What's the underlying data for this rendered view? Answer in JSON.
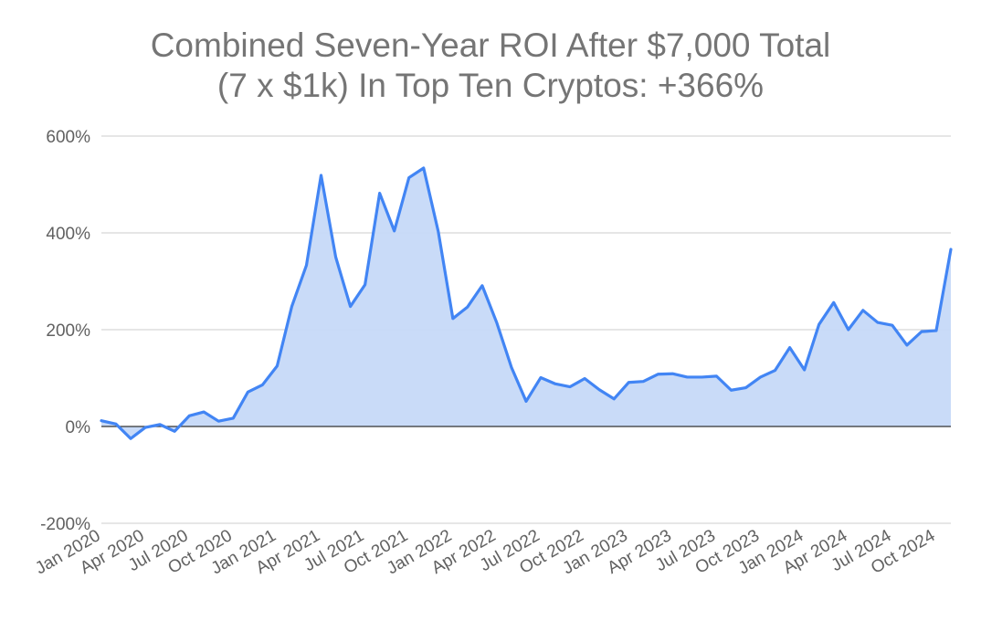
{
  "chart_data": {
    "type": "area",
    "title": "Combined Seven-Year ROI After $7,000 Total",
    "subtitle": "(7 x $1k) In Top Ten Cryptos: +366%",
    "xlabel": "",
    "ylabel": "",
    "ylim": [
      -200,
      600
    ],
    "yticks": [
      -200,
      0,
      200,
      400,
      600
    ],
    "ytick_labels": [
      "-200%",
      "0%",
      "200%",
      "400%",
      "600%"
    ],
    "xtick_labels": [
      "Jan 2020",
      "Apr 2020",
      "Jul 2020",
      "Oct 2020",
      "Jan 2021",
      "Apr 2021",
      "Jul 2021",
      "Oct 2021",
      "Jan 2022",
      "Apr 2022",
      "Jul 2022",
      "Oct 2022",
      "Jan 2023",
      "Apr 2023",
      "Jul 2023",
      "Oct 2023",
      "Jan 2024",
      "Apr 2024",
      "Jul 2024",
      "Oct 2024"
    ],
    "grid": true,
    "colors": {
      "line": "#4285f4",
      "fill": "#c6d9f8",
      "grid": "#cccccc",
      "zero_line": "#333333"
    },
    "series": [
      {
        "x": [
          "Jan 2020",
          "Feb 2020",
          "Mar 2020",
          "Apr 2020",
          "May 2020",
          "Jun 2020",
          "Jul 2020",
          "Aug 2020",
          "Sep 2020",
          "Oct 2020",
          "Nov 2020",
          "Dec 2020",
          "Jan 2021",
          "Feb 2021",
          "Mar 2021",
          "Apr 2021",
          "May 2021",
          "Jun 2021",
          "Jul 2021",
          "Aug 2021",
          "Sep 2021",
          "Oct 2021",
          "Nov 2021",
          "Dec 2021",
          "Jan 2022",
          "Feb 2022",
          "Mar 2022",
          "Apr 2022",
          "May 2022",
          "Jun 2022",
          "Jul 2022",
          "Aug 2022",
          "Sep 2022",
          "Oct 2022",
          "Nov 2022",
          "Dec 2022",
          "Jan 2023",
          "Feb 2023",
          "Mar 2023",
          "Apr 2023",
          "May 2023",
          "Jun 2023",
          "Jul 2023",
          "Aug 2023",
          "Sep 2023",
          "Oct 2023",
          "Nov 2023",
          "Dec 2023",
          "Jan 2024",
          "Feb 2024",
          "Mar 2024",
          "Apr 2024",
          "May 2024",
          "Jun 2024",
          "Jul 2024",
          "Aug 2024",
          "Sep 2024",
          "Oct 2024",
          "Nov 2024"
        ],
        "values": [
          12,
          5,
          -25,
          -2,
          4,
          -10,
          22,
          30,
          11,
          17,
          71,
          86,
          125,
          248,
          333,
          519,
          350,
          248,
          293,
          482,
          404,
          514,
          534,
          403,
          223,
          247,
          291,
          214,
          122,
          52,
          101,
          88,
          82,
          99,
          76,
          57,
          91,
          93,
          108,
          109,
          102,
          102,
          104,
          75,
          80,
          102,
          116,
          163,
          117,
          211,
          256,
          200,
          240,
          215,
          209,
          168,
          196,
          198,
          366
        ]
      }
    ]
  }
}
